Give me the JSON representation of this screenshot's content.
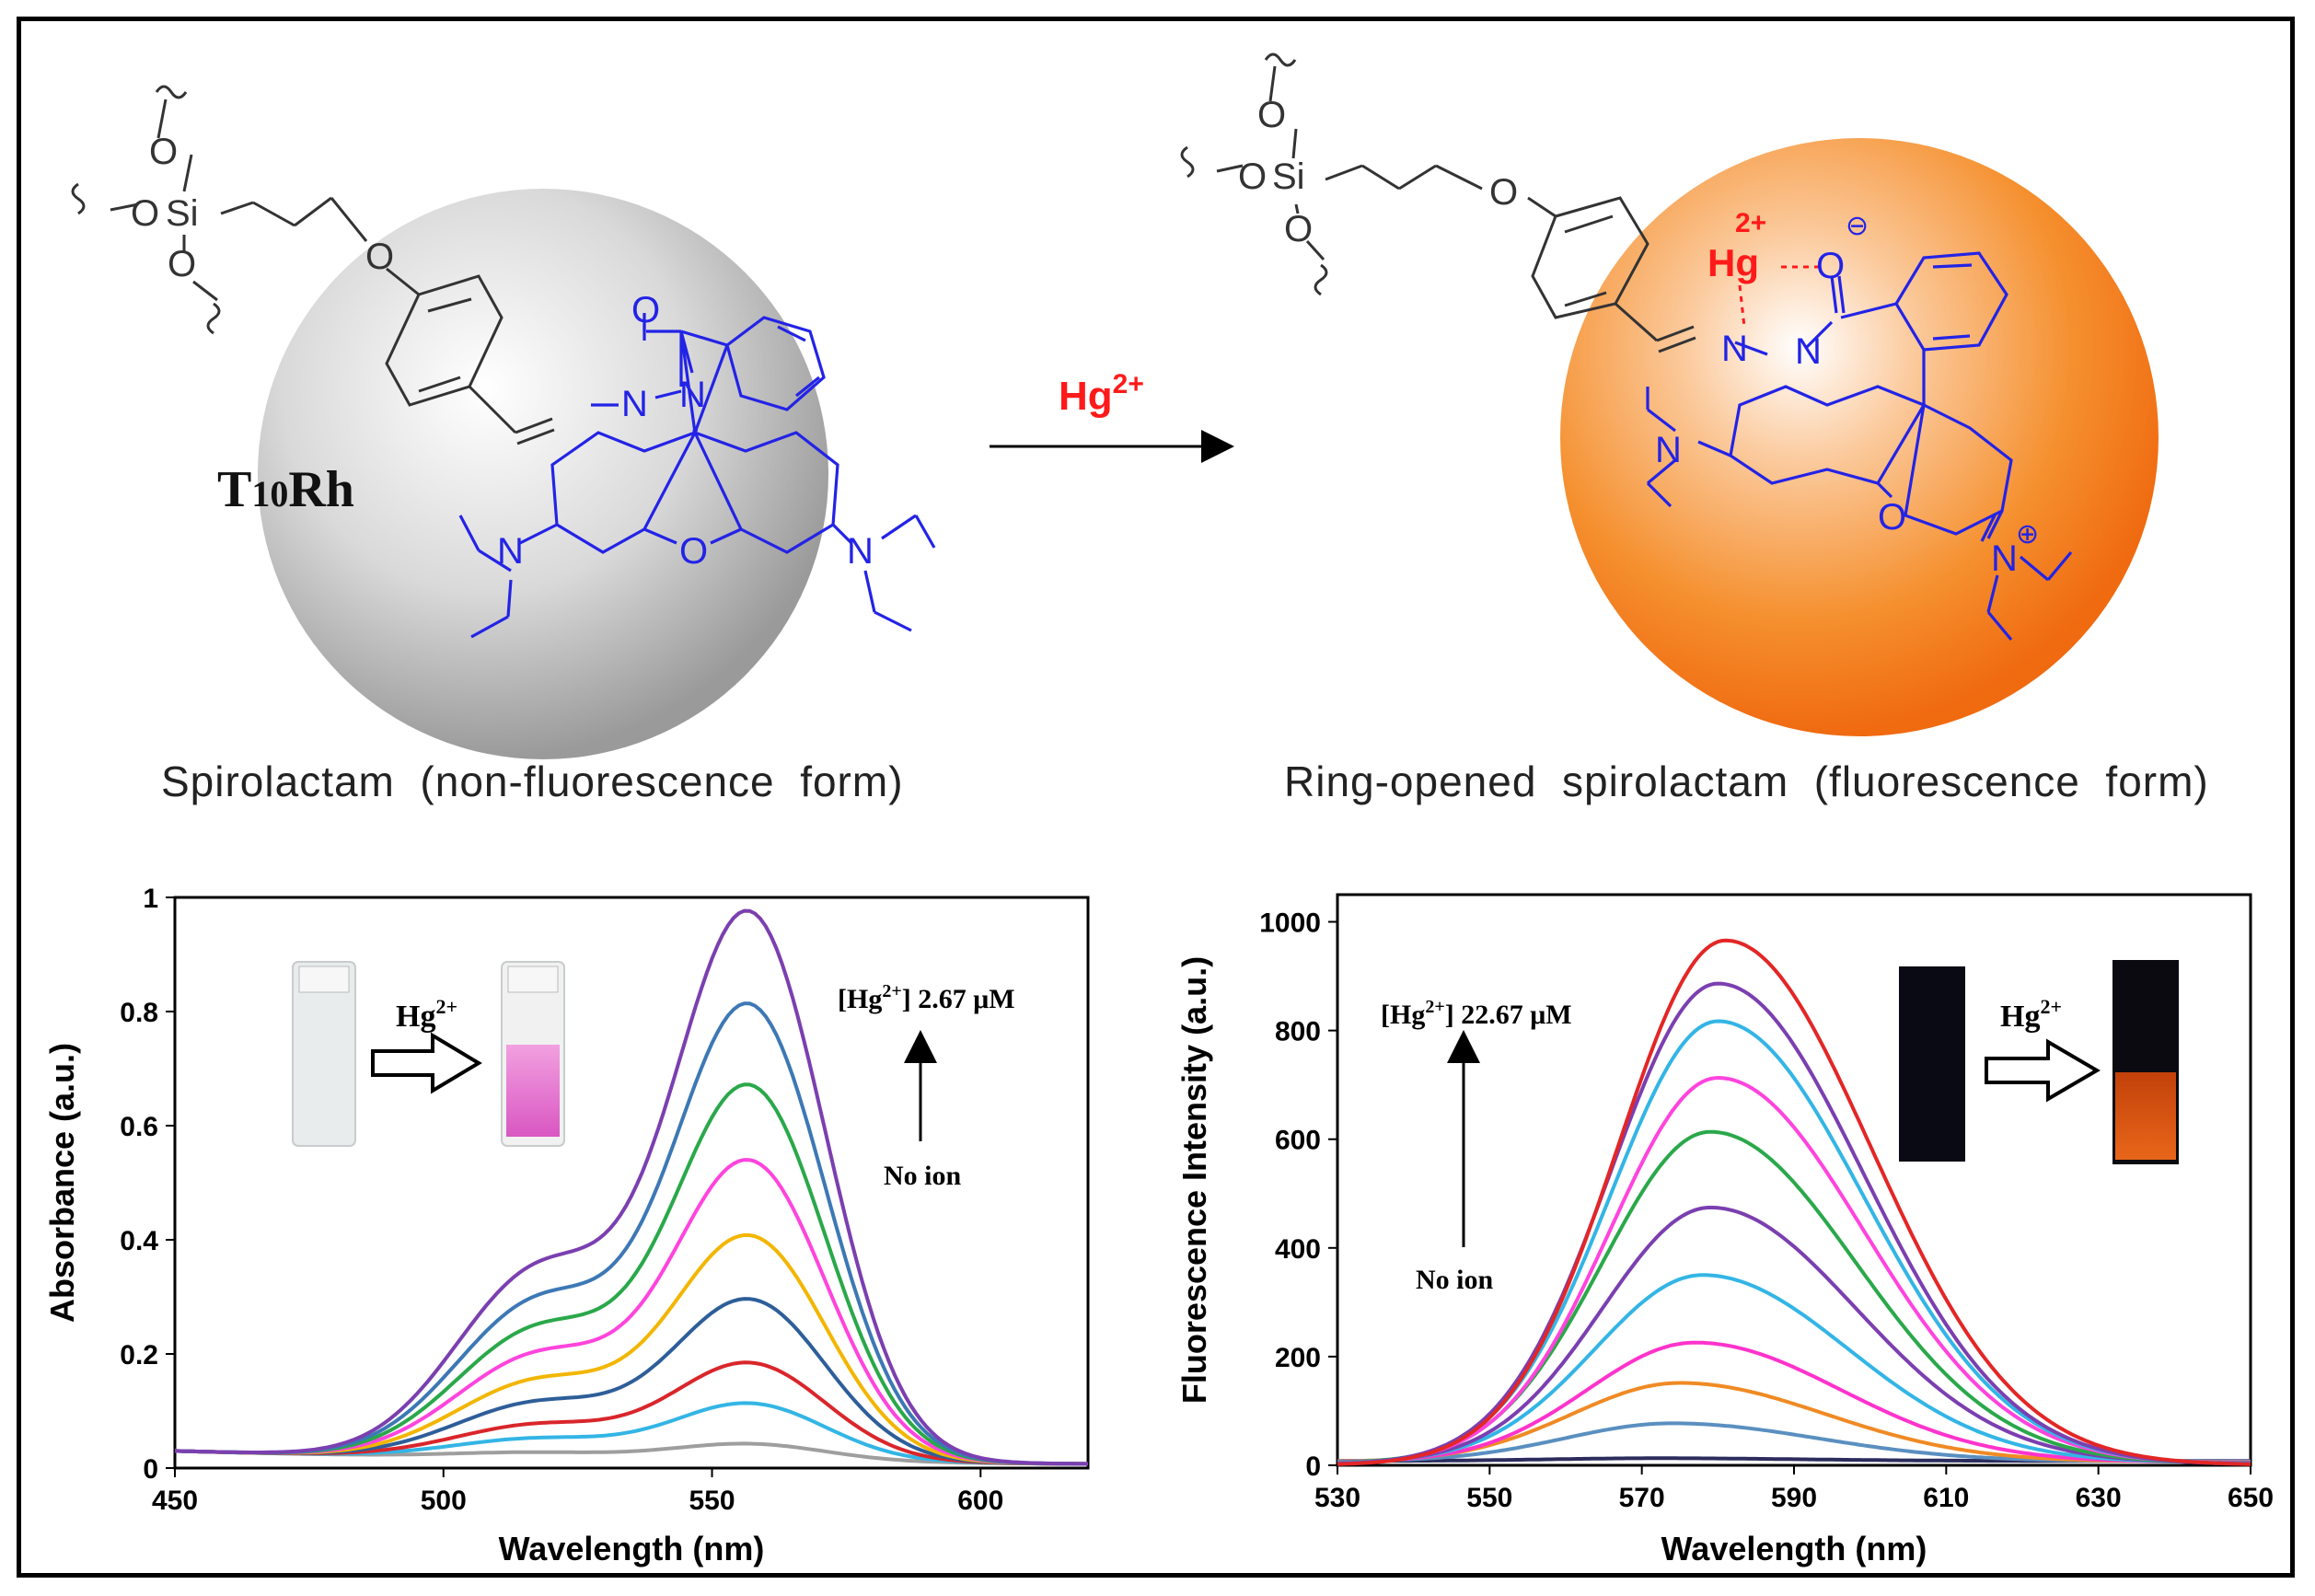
{
  "reaction": {
    "label_T": "T",
    "label_sub": "10",
    "label_Rh": "Rh",
    "reagent": "Hg",
    "reagent_charge": "2+",
    "left_caption": "Spirolactam  (non-fluorescence  form)",
    "right_caption": "Ring-opened  spirolactam  (fluorescence  form)",
    "hg_label": "Hg",
    "hg_charge": "2+",
    "colors": {
      "sphere_left": "#bdbdbd",
      "sphere_right": "#f47a1e",
      "rhodamine": "#2323e6",
      "mercury": "#ff1a1a"
    }
  },
  "atoms": {
    "O": "O",
    "Si": "Si",
    "N": "N",
    "minus": "⊖",
    "plus": "⊕"
  },
  "chart_data": [
    {
      "type": "line",
      "xlabel": "Wavelength (nm)",
      "ylabel": "Absorbance (a.u.)",
      "xlim": [
        450,
        620
      ],
      "ylim": [
        0,
        1
      ],
      "xticks": [
        450,
        500,
        550,
        600
      ],
      "yticks": [
        "0",
        "0.2",
        "0.4",
        "0.6",
        "0.8",
        "1"
      ],
      "annotation_top": "[Hg",
      "annotation_top_sup": "2+",
      "annotation_top_tail": "] 2.67 μM",
      "annotation_bottom": "No ion",
      "inset_label": "Hg",
      "inset_label_sup": "2+",
      "peak": 557,
      "series_peaks": [
        0.03,
        0.1,
        0.17,
        0.28,
        0.39,
        0.52,
        0.65,
        0.79,
        0.95
      ],
      "series_colors": [
        "#9e9e9e",
        "#33b5e5",
        "#d9262b",
        "#2e5e99",
        "#f2b600",
        "#ff44dd",
        "#2aa84a",
        "#3d78b5",
        "#7b3fb0"
      ]
    },
    {
      "type": "line",
      "xlabel": "Wavelength (nm)",
      "ylabel": "Fluorescence Intensity (a.u.)",
      "xlim": [
        530,
        650
      ],
      "ylim": [
        0,
        1050
      ],
      "xticks": [
        530,
        550,
        570,
        590,
        610,
        630,
        650
      ],
      "yticks": [
        "0",
        "200",
        "400",
        "600",
        "800",
        "1000"
      ],
      "annotation_top": "[Hg",
      "annotation_top_sup": "2+",
      "annotation_top_tail": "] 22.67 μM",
      "annotation_bottom": "No ion",
      "inset_label": "Hg",
      "inset_label_sup": "2+",
      "series_peaks": [
        5,
        70,
        145,
        220,
        345,
        470,
        610,
        710,
        815,
        885,
        965
      ],
      "series_centers": [
        572,
        574,
        575,
        577,
        578,
        579,
        579,
        580,
        580,
        580,
        581
      ],
      "series_colors": [
        "#2c2c5e",
        "#5a8fc0",
        "#f08a24",
        "#ff33cc",
        "#33b5e5",
        "#7b3fb0",
        "#2aa84a",
        "#ff44dd",
        "#33b5e5",
        "#7b3fb0",
        "#e32626"
      ]
    }
  ]
}
